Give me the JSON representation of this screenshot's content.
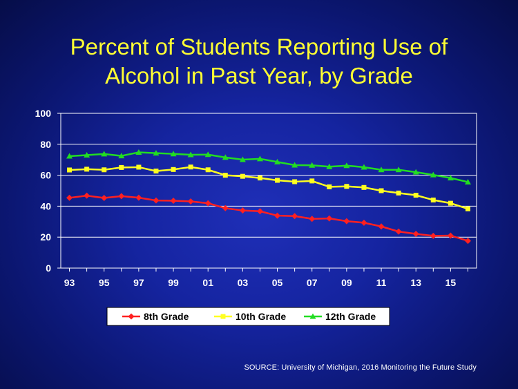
{
  "slide": {
    "title_line1": "Percent of Students Reporting Use of",
    "title_line2": "Alcohol in Past Year, by Grade",
    "source": "SOURCE: University of Michigan, 2016 Monitoring the Future Study"
  },
  "colors": {
    "title": "#ffff33",
    "grid": "#ffffff",
    "axis_text": "#ffffff",
    "legend_bg": "#ffffff",
    "legend_text": "#000000"
  },
  "chart_data": {
    "type": "line",
    "title": "Percent of Students Reporting Use of Alcohol in Past Year, by Grade",
    "xlabel": "",
    "ylabel": "",
    "ylim": [
      0,
      100
    ],
    "yticks": [
      0,
      20,
      40,
      60,
      80,
      100
    ],
    "grid": true,
    "legend_position": "bottom",
    "x": [
      1993,
      1994,
      1995,
      1996,
      1997,
      1998,
      1999,
      2000,
      2001,
      2002,
      2003,
      2004,
      2005,
      2006,
      2007,
      2008,
      2009,
      2010,
      2011,
      2012,
      2013,
      2014,
      2015,
      2016
    ],
    "xlim": [
      1992.5,
      2016.5
    ],
    "xtick_values": [
      1993,
      1995,
      1997,
      1999,
      2001,
      2003,
      2005,
      2007,
      2009,
      2011,
      2013,
      2015
    ],
    "xtick_labels": [
      "93",
      "95",
      "97",
      "99",
      "01",
      "03",
      "05",
      "07",
      "09",
      "11",
      "13",
      "15"
    ],
    "series": [
      {
        "name": "8th Grade",
        "color": "#ff2020",
        "marker": "diamond",
        "values": [
          45.4,
          46.8,
          45.3,
          46.5,
          45.5,
          43.7,
          43.5,
          43.1,
          41.9,
          38.7,
          37.2,
          36.7,
          33.9,
          33.6,
          31.8,
          32.1,
          30.3,
          29.3,
          26.9,
          23.6,
          22.1,
          20.8,
          21.0,
          17.6
        ]
      },
      {
        "name": "10th Grade",
        "color": "#ffff20",
        "marker": "square",
        "values": [
          63.4,
          63.9,
          63.5,
          65.0,
          65.2,
          62.7,
          63.7,
          65.3,
          63.5,
          60.0,
          59.3,
          58.2,
          56.7,
          55.8,
          56.3,
          52.5,
          52.8,
          52.1,
          50.0,
          48.5,
          47.1,
          44.0,
          41.9,
          38.3
        ]
      },
      {
        "name": "12th Grade",
        "color": "#22dd22",
        "marker": "triangle",
        "values": [
          72.3,
          73.0,
          73.7,
          72.5,
          74.8,
          74.3,
          73.8,
          73.2,
          73.3,
          71.5,
          70.1,
          70.6,
          68.6,
          66.5,
          66.4,
          65.5,
          66.2,
          65.2,
          63.5,
          63.5,
          62.0,
          60.2,
          58.2,
          55.6
        ]
      }
    ]
  }
}
